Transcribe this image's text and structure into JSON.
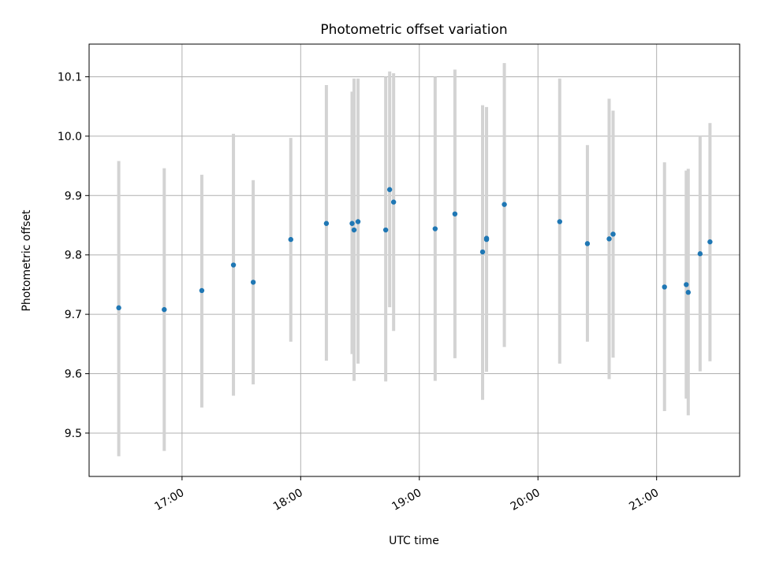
{
  "chart_data": {
    "type": "scatter",
    "title": "Photometric offset variation",
    "xlabel": "UTC time",
    "ylabel": "Photometric offset",
    "x_unit": "time of day (UTC), minutes since midnight",
    "xlim": [
      "16:13",
      "21:42"
    ],
    "ylim": [
      9.427,
      10.155
    ],
    "x_ticks": [
      "17:00",
      "18:00",
      "19:00",
      "20:00",
      "21:00"
    ],
    "y_ticks": [
      9.5,
      9.6,
      9.7,
      9.8,
      9.9,
      10.0,
      10.1
    ],
    "grid": true,
    "legend": "none",
    "colors": {
      "point": "#1f77b4",
      "errorbar": "#d3d3d3",
      "grid": "#b0b0b0"
    },
    "series": [
      {
        "points": [
          {
            "x": "16:28",
            "y": 9.711,
            "lo": 9.461,
            "hi": 9.958
          },
          {
            "x": "16:51",
            "y": 9.708,
            "lo": 9.47,
            "hi": 9.946
          },
          {
            "x": "17:10",
            "y": 9.74,
            "lo": 9.543,
            "hi": 9.935
          },
          {
            "x": "17:26",
            "y": 9.783,
            "lo": 9.563,
            "hi": 10.004
          },
          {
            "x": "17:36",
            "y": 9.754,
            "lo": 9.582,
            "hi": 9.926
          },
          {
            "x": "17:55",
            "y": 9.826,
            "lo": 9.654,
            "hi": 9.997
          },
          {
            "x": "18:13",
            "y": 9.853,
            "lo": 9.622,
            "hi": 10.086
          },
          {
            "x": "18:26",
            "y": 9.853,
            "lo": 9.633,
            "hi": 10.075
          },
          {
            "x": "18:27",
            "y": 9.842,
            "lo": 9.588,
            "hi": 10.097
          },
          {
            "x": "18:29",
            "y": 9.856,
            "lo": 9.617,
            "hi": 10.097
          },
          {
            "x": "18:43",
            "y": 9.842,
            "lo": 9.587,
            "hi": 10.1
          },
          {
            "x": "18:45",
            "y": 9.91,
            "lo": 9.712,
            "hi": 10.109
          },
          {
            "x": "18:47",
            "y": 9.889,
            "lo": 9.672,
            "hi": 10.106
          },
          {
            "x": "19:08",
            "y": 9.844,
            "lo": 9.588,
            "hi": 10.1
          },
          {
            "x": "19:18",
            "y": 9.869,
            "lo": 9.626,
            "hi": 10.112
          },
          {
            "x": "19:32",
            "y": 9.805,
            "lo": 9.556,
            "hi": 10.052
          },
          {
            "x": "19:34",
            "y": 9.828,
            "lo": 9.603,
            "hi": 10.049
          },
          {
            "x": "19:34",
            "y": 9.826,
            "lo": 9.627,
            "hi": 10.027
          },
          {
            "x": "19:43",
            "y": 9.885,
            "lo": 9.645,
            "hi": 10.123
          },
          {
            "x": "20:11",
            "y": 9.856,
            "lo": 9.617,
            "hi": 10.097
          },
          {
            "x": "20:25",
            "y": 9.819,
            "lo": 9.654,
            "hi": 9.985
          },
          {
            "x": "20:36",
            "y": 9.827,
            "lo": 9.591,
            "hi": 10.063
          },
          {
            "x": "20:38",
            "y": 9.835,
            "lo": 9.627,
            "hi": 10.043
          },
          {
            "x": "21:04",
            "y": 9.746,
            "lo": 9.537,
            "hi": 9.956
          },
          {
            "x": "21:15",
            "y": 9.75,
            "lo": 9.558,
            "hi": 9.942
          },
          {
            "x": "21:16",
            "y": 9.737,
            "lo": 9.53,
            "hi": 9.945
          },
          {
            "x": "21:22",
            "y": 9.802,
            "lo": 9.604,
            "hi": 10.0
          },
          {
            "x": "21:27",
            "y": 9.822,
            "lo": 9.621,
            "hi": 10.022
          }
        ]
      }
    ]
  }
}
